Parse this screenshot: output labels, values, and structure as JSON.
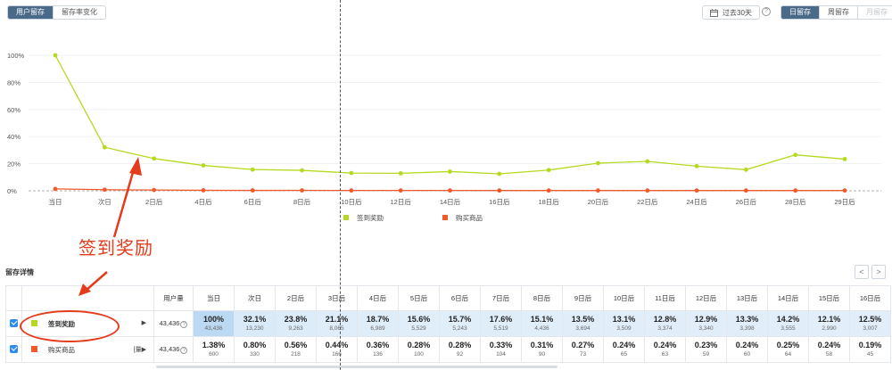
{
  "tabs": {
    "user_retention": "用户留存",
    "retention_change": "留存率变化"
  },
  "date_range": {
    "label": "过去30天"
  },
  "help_icon": "?",
  "granularity": {
    "day": "日留存",
    "week": "周留存",
    "month": "月留存"
  },
  "annotation": {
    "text": "签到奖励"
  },
  "detail": {
    "title": "留存详情",
    "prev": "<",
    "next": ">"
  },
  "table": {
    "headers": [
      "用户量",
      "当日",
      "次日",
      "2日后",
      "3日后",
      "4日后",
      "5日后",
      "6日后",
      "7日后",
      "8日后",
      "9日后",
      "10日后",
      "11日后",
      "12日后",
      "13日后",
      "14日后",
      "15日后",
      "16日后"
    ],
    "rows": [
      {
        "name": "签到奖励",
        "marker": "▶",
        "users": "43,436",
        "pct": [
          "100%",
          "32.1%",
          "23.8%",
          "21.1%",
          "18.7%",
          "15.6%",
          "15.7%",
          "17.6%",
          "15.1%",
          "13.5%",
          "13.1%",
          "12.8%",
          "12.9%",
          "13.3%",
          "14.2%",
          "12.1%",
          "12.5%"
        ],
        "cnt": [
          "43,436",
          "13,230",
          "9,263",
          "8,065",
          "6,989",
          "5,529",
          "5,243",
          "5,519",
          "4,436",
          "3,694",
          "3,509",
          "3,374",
          "3,340",
          "3,398",
          "3,555",
          "2,990",
          "3,007"
        ]
      },
      {
        "name": "购买商品",
        "marker": "[量▶",
        "users": "43,436",
        "pct": [
          "1.38%",
          "0.80%",
          "0.56%",
          "0.44%",
          "0.36%",
          "0.28%",
          "0.28%",
          "0.33%",
          "0.31%",
          "0.27%",
          "0.24%",
          "0.24%",
          "0.23%",
          "0.24%",
          "0.25%",
          "0.24%",
          "0.19%"
        ],
        "cnt": [
          "600",
          "330",
          "218",
          "166",
          "136",
          "100",
          "92",
          "104",
          "90",
          "73",
          "65",
          "63",
          "59",
          "60",
          "64",
          "58",
          "45"
        ]
      }
    ]
  },
  "colors": {
    "series1": "#b5d91f",
    "series2": "#f05a28",
    "accent": "#4a6a8a",
    "annotation": "#e53b1b"
  },
  "chart_data": {
    "type": "line",
    "x": [
      "当日",
      "次日",
      "2日后",
      "4日后",
      "6日后",
      "8日后",
      "10日后",
      "12日后",
      "14日后",
      "16日后",
      "18日后",
      "20日后",
      "22日后",
      "24日后",
      "26日后",
      "28日后",
      "29日后"
    ],
    "series": [
      {
        "name": "签到奖励",
        "color": "#b5d91f",
        "values": [
          100,
          32.1,
          23.8,
          18.7,
          15.7,
          15.1,
          13.1,
          12.9,
          14.2,
          12.5,
          15.3,
          20.4,
          21.7,
          18.2,
          15.6,
          26.5,
          23.4
        ]
      },
      {
        "name": "购买商品",
        "color": "#f05a28",
        "values": [
          1.38,
          0.8,
          0.56,
          0.36,
          0.28,
          0.31,
          0.24,
          0.23,
          0.25,
          0.19,
          0.22,
          0.2,
          0.21,
          0.2,
          0.19,
          0.22,
          0.21
        ]
      }
    ],
    "yticks": [
      "0%",
      "20%",
      "40%",
      "60%",
      "80%",
      "100%"
    ],
    "ylim": [
      0,
      100
    ],
    "legend": "bottom-center",
    "grid": true
  }
}
